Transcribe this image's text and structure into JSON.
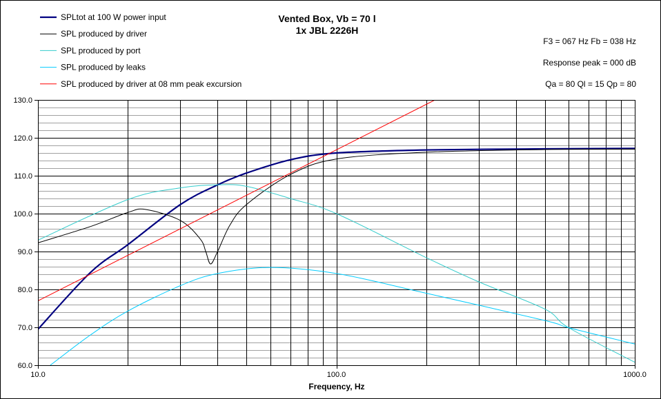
{
  "chart_data": {
    "type": "line",
    "title": [
      "Vented Box, Vb = 70 l",
      "1x JBL 2226H"
    ],
    "info": [
      "F3 = 067  Hz  Fb = 038  Hz",
      "Response peak = 000  dB",
      "Qa = 80   Ql = 15   Qp = 80"
    ],
    "xlabel": "Frequency, Hz",
    "ylabel": "",
    "xscale": "log",
    "xlim": [
      10,
      1000
    ],
    "ylim": [
      60,
      130
    ],
    "xticks": [
      "10.0",
      "100.0",
      "1000.0"
    ],
    "yticks": [
      "60.0",
      "70.0",
      "80.0",
      "90.0",
      "100.0",
      "110.0",
      "120.0",
      "130.0"
    ],
    "grid": true,
    "legend_placement": "top-left",
    "series": [
      {
        "name": "SPLtot at 100 W power input",
        "color": "#000080",
        "x": [
          10,
          15,
          20,
          30,
          40,
          50,
          70,
          100,
          200,
          500,
          1000
        ],
        "y": [
          69.5,
          84.5,
          91.8,
          102.4,
          107.6,
          110.7,
          114.2,
          116.0,
          116.8,
          117.1,
          117.2
        ]
      },
      {
        "name": "SPL produced by driver",
        "color": "#000000",
        "x": [
          10,
          15,
          20,
          23,
          30,
          35,
          36.5,
          37.9,
          40,
          44,
          50,
          70,
          100,
          200,
          500,
          1000
        ],
        "y": [
          92.3,
          96.6,
          100.3,
          101.1,
          98.2,
          93.3,
          90.0,
          86.7,
          90.0,
          97.0,
          102.4,
          110.3,
          114.4,
          116.2,
          116.9,
          117.0
        ]
      },
      {
        "name": "SPL produced by port",
        "color": "#33CCCC",
        "x": [
          10,
          20,
          30,
          40,
          50,
          70,
          100,
          200,
          300,
          500,
          600,
          1000
        ],
        "y": [
          93.0,
          103.7,
          106.8,
          107.6,
          107.2,
          104.0,
          100.0,
          88.4,
          82.0,
          74.8,
          69.9,
          60.8
        ]
      },
      {
        "name": "SPL produced by leaks",
        "color": "#00CCFF",
        "x": [
          11,
          15,
          20,
          30,
          40,
          60,
          100,
          200,
          500,
          600,
          1000
        ],
        "y": [
          60.0,
          68.0,
          74.3,
          81.0,
          84.2,
          85.8,
          84.2,
          79.0,
          71.8,
          69.9,
          65.6
        ]
      },
      {
        "name": "SPL produced by driver at 08 mm peak excursion",
        "color": "#FF0000",
        "x": [
          10,
          100,
          214
        ],
        "y": [
          77.0,
          116.8,
          130.0
        ]
      }
    ]
  }
}
